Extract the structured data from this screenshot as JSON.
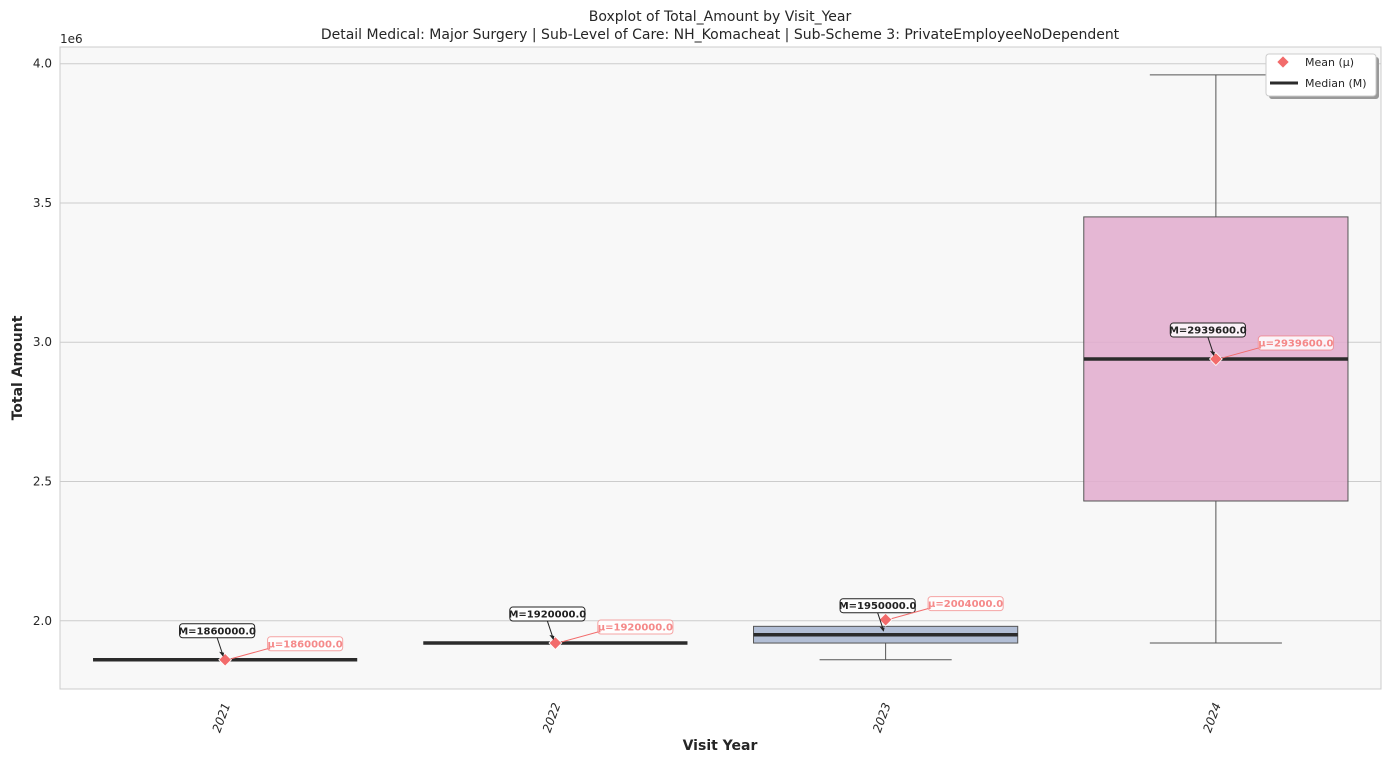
{
  "chart_data": {
    "type": "box",
    "title": "Boxplot of Total_Amount by Visit_Year",
    "subtitle": "Detail Medical: Major Surgery | Sub-Level of Care: NH_Komacheat | Sub-Scheme 3: PrivateEmployeeNoDependent",
    "xlabel": "Visit Year",
    "ylabel": "Total Amount",
    "y_offset_label": "1e6",
    "ylim": [
      1.755,
      4.06
    ],
    "y_ticks": [
      2.0,
      2.5,
      3.0,
      3.5,
      4.0
    ],
    "y_tick_labels": [
      "2.0",
      "2.5",
      "3.0",
      "3.5",
      "4.0"
    ],
    "grid": "horizontal",
    "legend_position": "top-right",
    "legend": [
      {
        "label": "Mean (μ)",
        "marker": "diamond",
        "color": "#f26b6b"
      },
      {
        "label": "Median (M)",
        "marker": "line",
        "color": "#2b2b2b"
      }
    ],
    "categories": [
      "2021",
      "2022",
      "2023",
      "2024"
    ],
    "boxes": [
      {
        "x": "2021",
        "whislo": 1.86,
        "q1": 1.86,
        "median": 1.86,
        "q3": 1.86,
        "whishi": 1.86,
        "mean": 1.86,
        "color": "#5b8fc9",
        "median_label": "M=1860000.0",
        "mean_label": "μ=1860000.0"
      },
      {
        "x": "2022",
        "whislo": 1.92,
        "q1": 1.92,
        "median": 1.92,
        "q3": 1.92,
        "whishi": 1.92,
        "mean": 1.92,
        "color": "#e8a87c",
        "median_label": "M=1920000.0",
        "mean_label": "μ=1920000.0"
      },
      {
        "x": "2023",
        "whislo": 1.86,
        "q1": 1.92,
        "median": 1.95,
        "q3": 1.98,
        "whishi": 1.98,
        "mean": 2.004,
        "color": "#a6b4cf",
        "median_label": "M=1950000.0",
        "mean_label": "μ=2004000.0"
      },
      {
        "x": "2024",
        "whislo": 1.92,
        "q1": 2.43,
        "median": 2.9396,
        "q3": 3.45,
        "whishi": 3.96,
        "mean": 2.9396,
        "color": "#e2acce",
        "median_label": "M=2939600.0",
        "mean_label": "μ=2939600.0"
      }
    ],
    "colors": {
      "mean": "#f26b6b",
      "median": "#2b2b2b",
      "whisker": "#555555",
      "plot_background": "#f8f8f8",
      "grid": "#cccccc"
    }
  }
}
